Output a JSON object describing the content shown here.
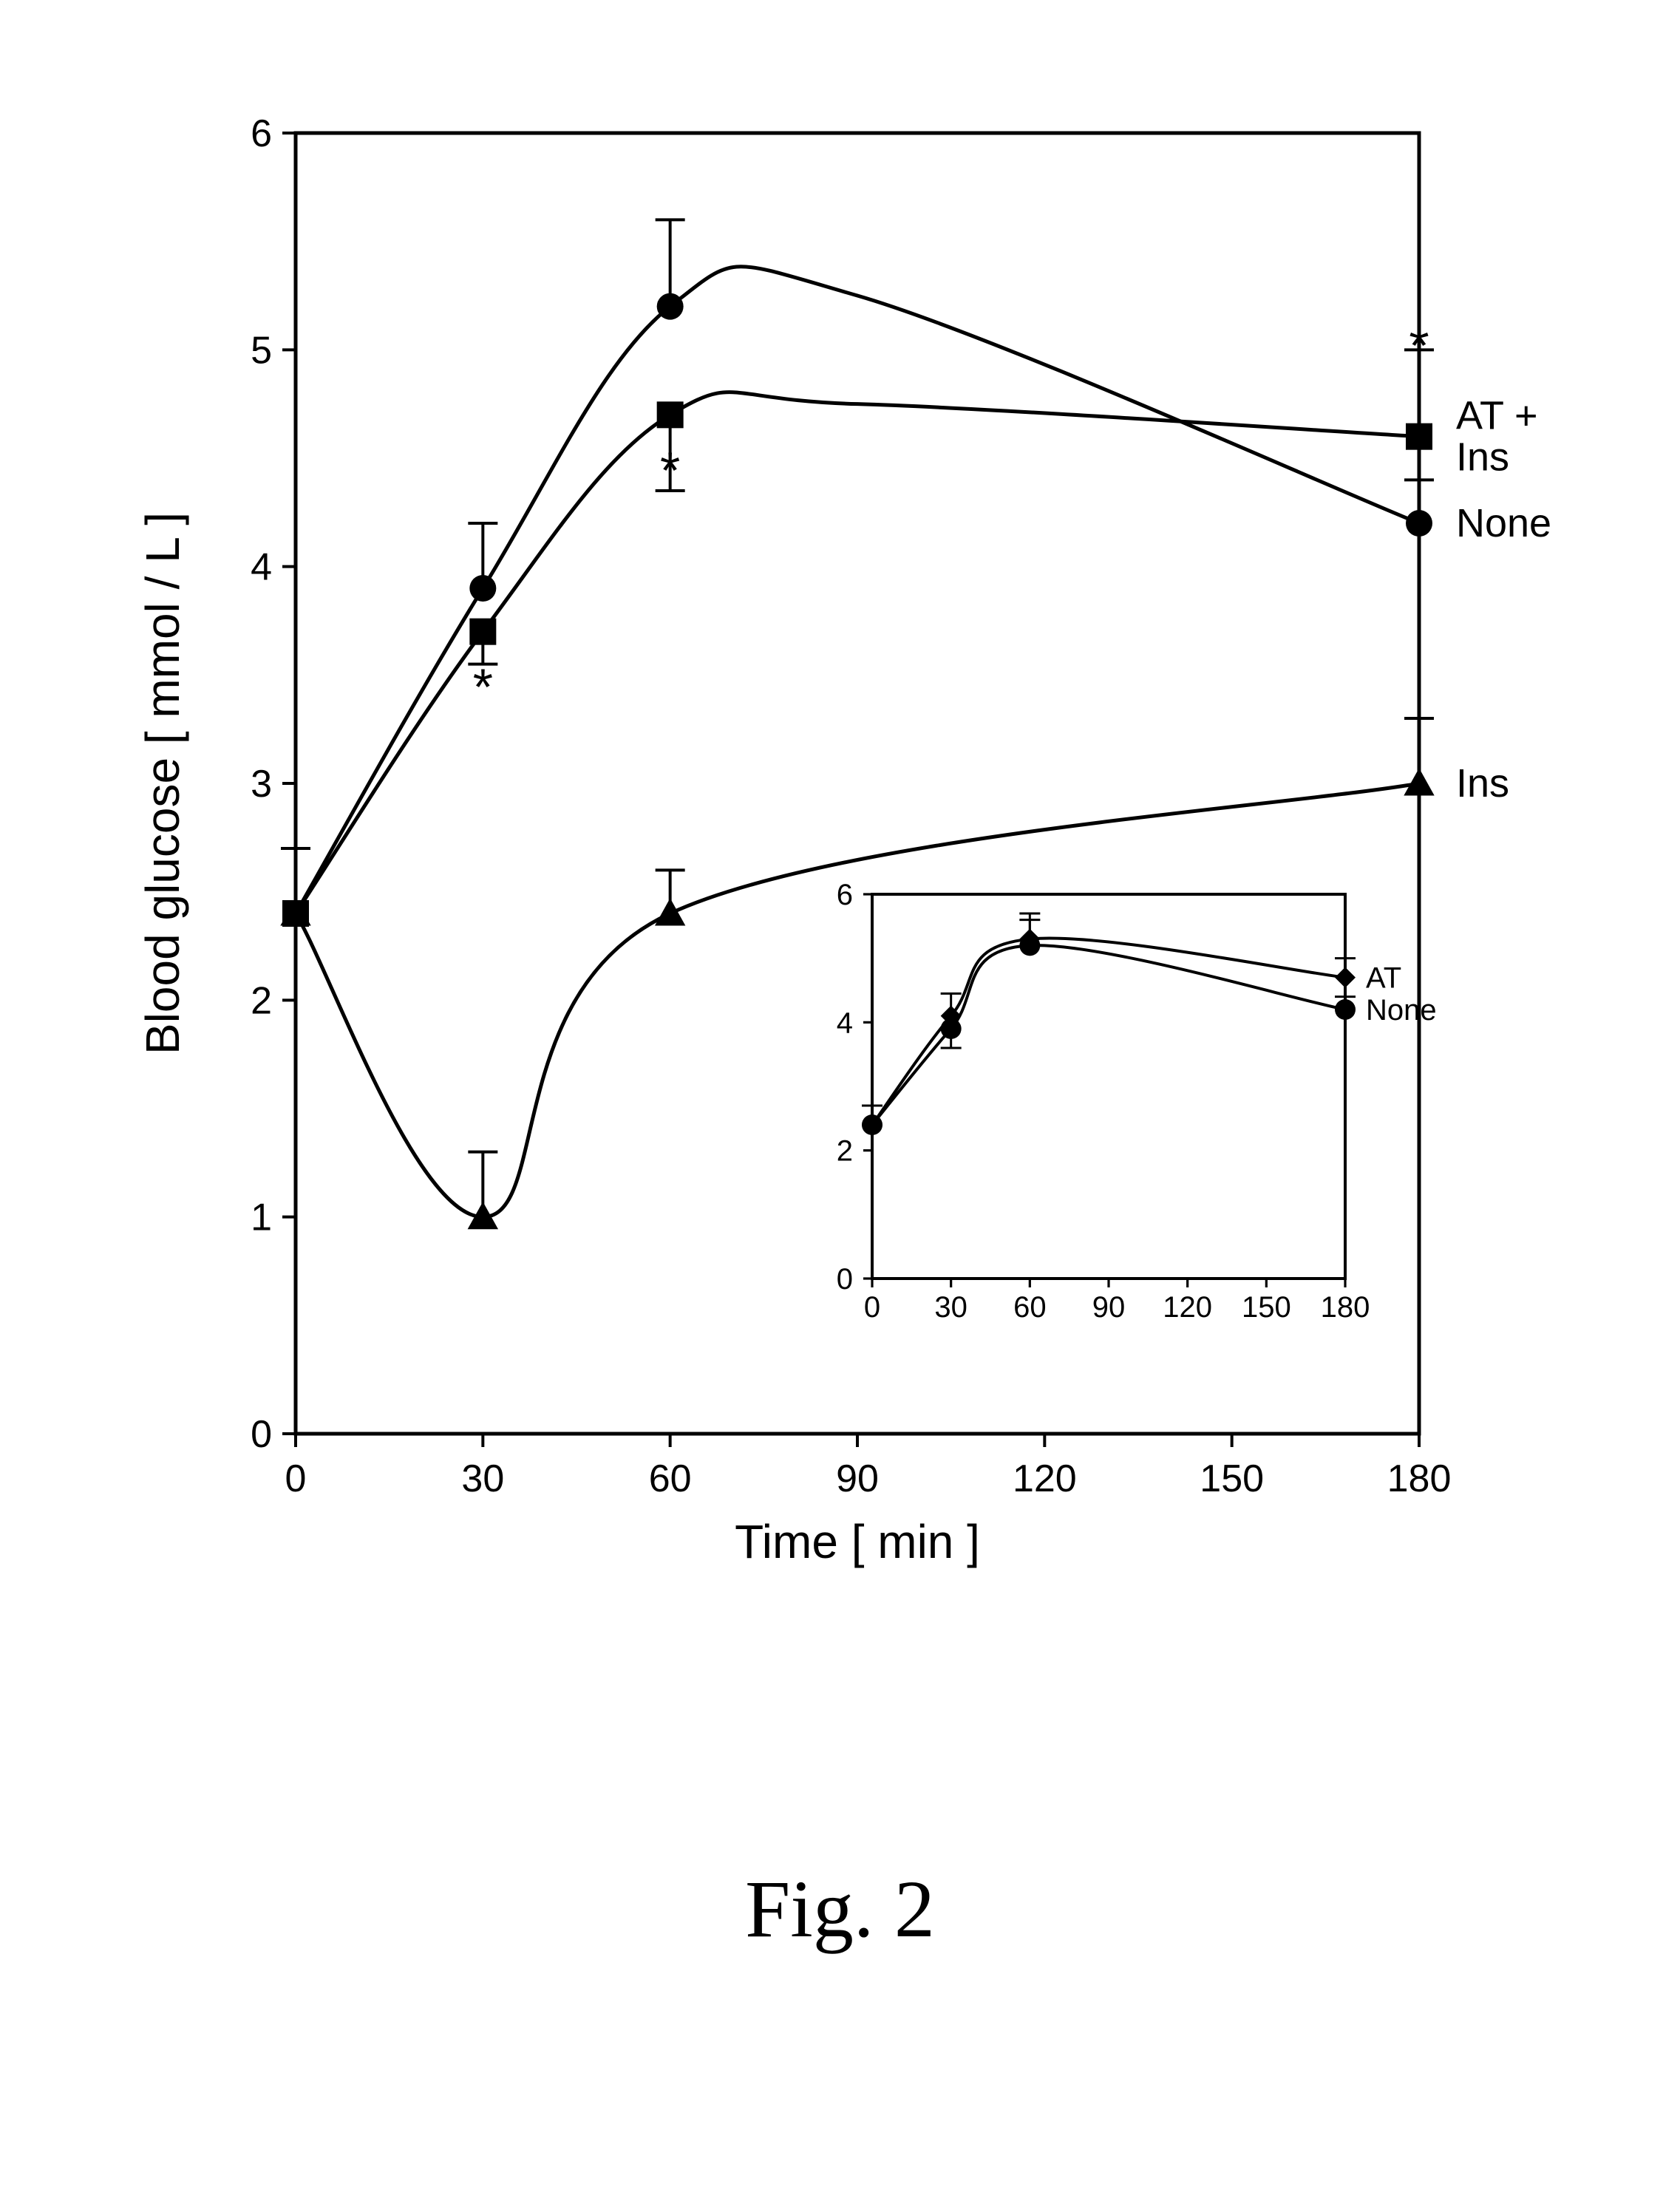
{
  "caption": "Fig. 2",
  "main_chart": {
    "type": "line",
    "xlabel": "Time  [ min ]",
    "ylabel": "Blood glucose  [ mmol / L ]",
    "label_fontsize": 64,
    "tick_fontsize": 52,
    "xlim": [
      0,
      180
    ],
    "ylim": [
      0,
      6
    ],
    "xticks": [
      0,
      30,
      60,
      90,
      120,
      150,
      180
    ],
    "yticks": [
      0,
      1,
      2,
      3,
      4,
      5,
      6
    ],
    "line_color": "#000000",
    "line_width": 5,
    "marker_size": 18,
    "error_cap_width": 20,
    "error_line_width": 4,
    "border_width": 5,
    "tick_len": 18,
    "series": [
      {
        "name": "None",
        "label": "None",
        "marker": "circle",
        "x": [
          0,
          30,
          60,
          180
        ],
        "y": [
          2.4,
          3.9,
          5.2,
          4.2
        ],
        "err": [
          0.3,
          0.3,
          0.4,
          0.2
        ],
        "curve_through_90": 5.25
      },
      {
        "name": "AT_Ins",
        "label": "AT +\nIns",
        "marker": "square",
        "x": [
          0,
          30,
          60,
          180
        ],
        "y": [
          2.4,
          3.7,
          4.7,
          4.6
        ],
        "err": [
          0.3,
          0.15,
          0.35,
          0.4
        ],
        "err_dir": [
          1,
          -1,
          -1,
          1
        ],
        "star": [
          false,
          true,
          true,
          true
        ],
        "star_dir": [
          0,
          -1,
          -1,
          1
        ],
        "curve_through_90": 4.75
      },
      {
        "name": "Ins",
        "label": "Ins",
        "marker": "triangle",
        "x": [
          0,
          30,
          60,
          180
        ],
        "y": [
          2.4,
          1.0,
          2.4,
          3.0
        ],
        "err": [
          0.3,
          0.3,
          0.2,
          0.3
        ]
      }
    ]
  },
  "inset_chart": {
    "type": "line",
    "xlim": [
      0,
      180
    ],
    "ylim": [
      0,
      6
    ],
    "xticks": [
      0,
      30,
      60,
      90,
      120,
      150,
      180
    ],
    "yticks": [
      0,
      2,
      4,
      6
    ],
    "label_fontsize": 40,
    "line_color": "#000000",
    "line_width": 4,
    "marker_size": 14,
    "border_width": 4,
    "tick_len": 12,
    "error_cap_width": 14,
    "error_line_width": 3,
    "series": [
      {
        "name": "AT",
        "label": "AT",
        "marker": "diamond",
        "x": [
          0,
          30,
          60,
          180
        ],
        "y": [
          2.4,
          4.1,
          5.3,
          4.7
        ],
        "err": [
          0.3,
          0.35,
          0.4,
          0.3
        ]
      },
      {
        "name": "None",
        "label": "None",
        "marker": "circle",
        "x": [
          0,
          30,
          60,
          180
        ],
        "y": [
          2.4,
          3.9,
          5.2,
          4.2
        ],
        "err": [
          0.3,
          0.3,
          0.4,
          0.2
        ],
        "err_dir": [
          1,
          -1,
          1,
          1
        ]
      }
    ]
  }
}
